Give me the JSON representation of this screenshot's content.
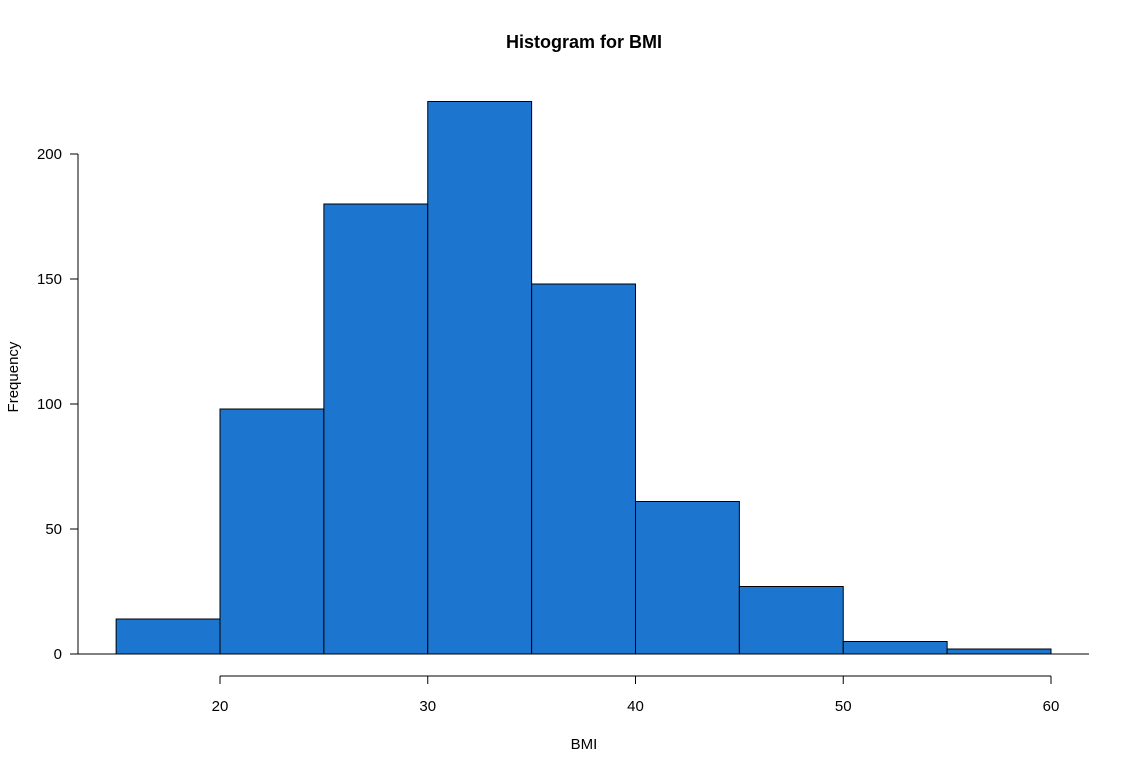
{
  "chart_data": {
    "type": "bar",
    "title": "Histogram for BMI",
    "xlabel": "BMI",
    "ylabel": "Frequency",
    "bin_edges": [
      15,
      20,
      25,
      30,
      35,
      40,
      45,
      50,
      55,
      60
    ],
    "values": [
      14,
      98,
      180,
      221,
      148,
      61,
      27,
      5,
      2
    ],
    "xticks": [
      20,
      30,
      40,
      50,
      60
    ],
    "yticks": [
      0,
      50,
      100,
      150,
      200
    ],
    "bar_color": "#1c75cf",
    "edge_color": "#000000",
    "grid": false,
    "legend": "none"
  }
}
